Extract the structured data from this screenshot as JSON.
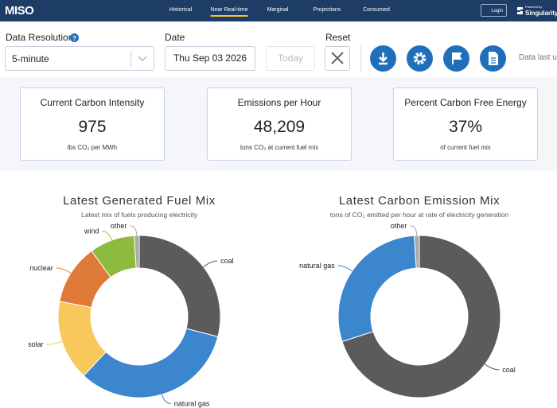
{
  "header": {
    "logo": "MISO",
    "nav": [
      "Historical",
      "Near Real-time",
      "Marginal",
      "Projections",
      "Consumed"
    ],
    "login": "Login",
    "powered_by": "Powered by",
    "brand": "Singularity"
  },
  "controls": {
    "resolution_label": "Data Resolution",
    "resolution": "5-minute",
    "date_label": "Date",
    "date": "Thu Sep 03 2026",
    "today": "Today",
    "reset_label": "Reset",
    "status": "Data last up"
  },
  "cards": [
    {
      "title": "Current Carbon Intensity",
      "value": "975",
      "unit": "lbs CO₂ per MWh"
    },
    {
      "title": "Emissions per Hour",
      "value": "48,209",
      "unit": "tons CO₂ at current fuel mix"
    },
    {
      "title": "Percent Carbon Free Energy",
      "value": "37%",
      "unit": "of current fuel mix"
    }
  ],
  "chart_data": [
    {
      "type": "pie",
      "donut": true,
      "title": "Latest Generated Fuel Mix",
      "subtitle": "Latest mix of fuels producing electricity",
      "categories": [
        "coal",
        "natural gas",
        "solar",
        "nuclear",
        "wind",
        "other"
      ],
      "values": [
        29,
        33,
        16,
        12,
        9,
        1
      ],
      "colors": [
        "#5b5b5b",
        "#3b86cd",
        "#f8c95a",
        "#e07a38",
        "#8dbb3d",
        "#a9a9a9"
      ]
    },
    {
      "type": "pie",
      "donut": true,
      "title": "Latest Carbon Emission Mix",
      "subtitle": "tons of CO₂ emitted per hour at rate of electricity generation",
      "categories": [
        "coal",
        "natural gas",
        "other"
      ],
      "values": [
        70,
        29,
        1
      ],
      "colors": [
        "#5b5b5b",
        "#3b86cd",
        "#a9a9a9"
      ]
    }
  ]
}
